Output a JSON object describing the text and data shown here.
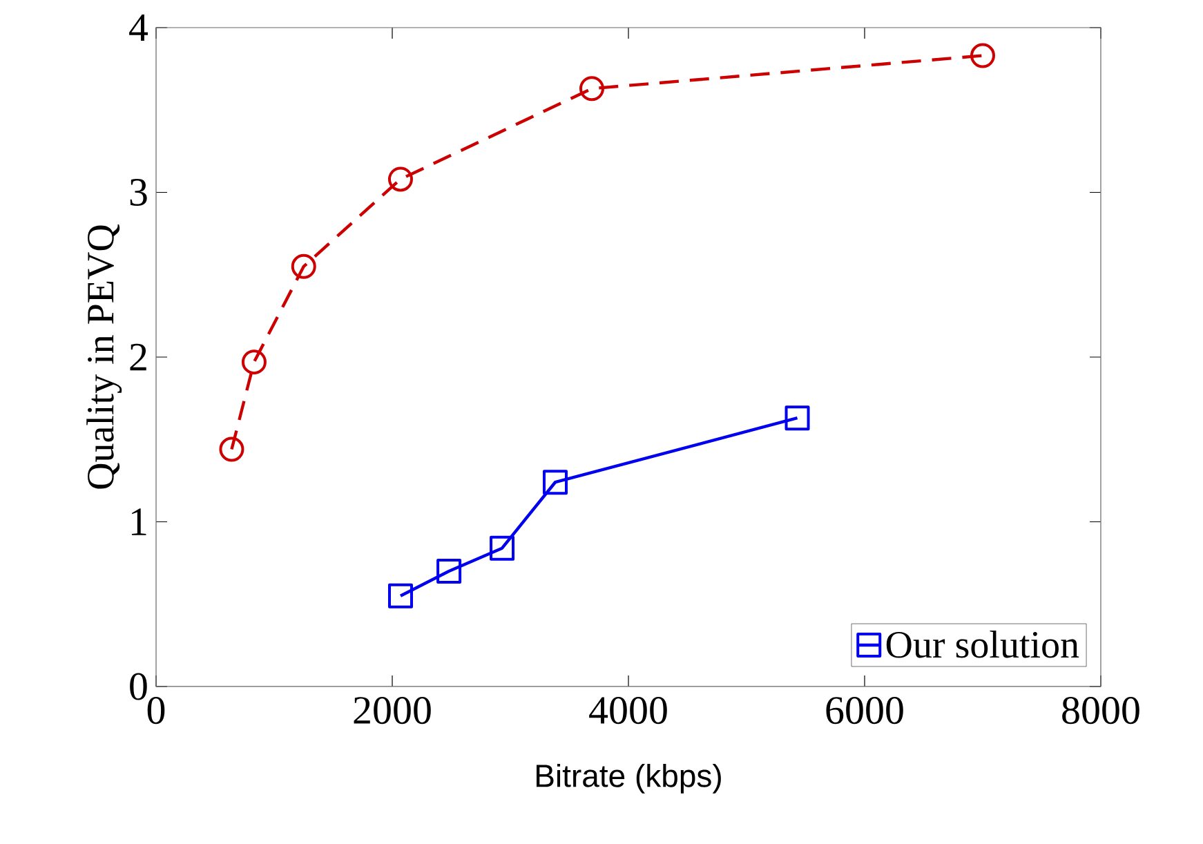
{
  "chart_data": {
    "type": "line",
    "xlabel": "Bitrate (kbps)",
    "ylabel": "Quality in PEVQ",
    "xlim": [
      0,
      8000
    ],
    "ylim": [
      0,
      4
    ],
    "xticks": [
      0,
      2000,
      4000,
      6000,
      8000
    ],
    "yticks": [
      0,
      1,
      2,
      3,
      4
    ],
    "grid": false,
    "legend": "bottom right",
    "series": [
      {
        "name": "Our solution",
        "color": "#0000ee",
        "marker": "square",
        "line_style": "solid",
        "x": [
          2070,
          2480,
          2930,
          3380,
          5430
        ],
        "values": [
          0.55,
          0.7,
          0.84,
          1.24,
          1.63
        ]
      },
      {
        "color": "#cc0000",
        "marker": "circle",
        "line_style": "dashed",
        "x": [
          640,
          830,
          1250,
          2070,
          3690,
          7000
        ],
        "values": [
          1.44,
          1.97,
          2.55,
          3.08,
          3.63,
          3.83
        ]
      }
    ]
  }
}
